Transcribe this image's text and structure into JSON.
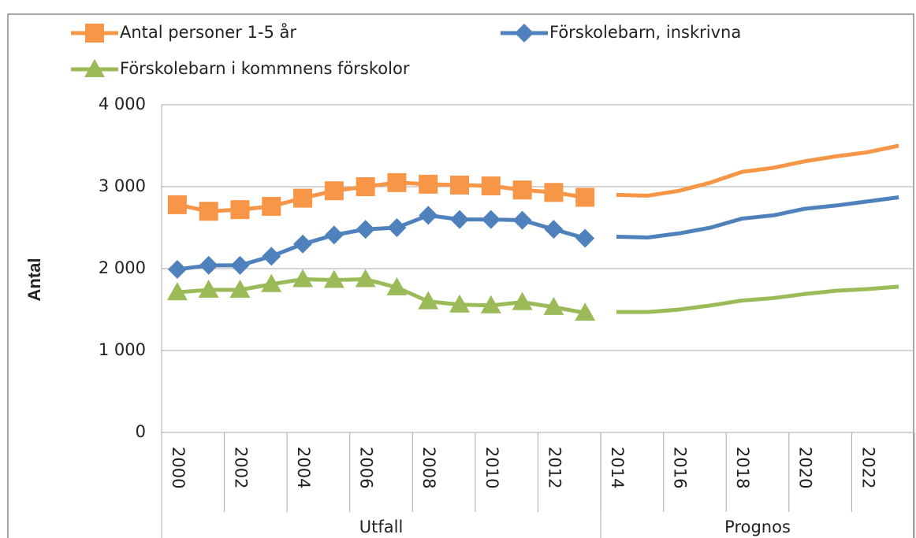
{
  "chart_data": {
    "type": "line",
    "y_label": "Antal",
    "categories": [
      "2000",
      null,
      "2002",
      null,
      "2004",
      null,
      "2006",
      null,
      "2008",
      null,
      "2010",
      null,
      "2012",
      null,
      "2014",
      null,
      "2016",
      null,
      "2018",
      null,
      "2020",
      null,
      "2022",
      null
    ],
    "groups": [
      {
        "label": "Utfall",
        "span": 14,
        "markers": true
      },
      {
        "label": "Prognos",
        "span": 10,
        "markers": false
      }
    ],
    "series": [
      {
        "name": "Antal personer 1-5 år",
        "color": "#f79646",
        "marker": "square",
        "values": [
          2780,
          2700,
          2720,
          2760,
          2860,
          2950,
          3000,
          3050,
          3030,
          3020,
          3010,
          2960,
          2930,
          2870,
          2900,
          2890,
          2950,
          3050,
          3180,
          3230,
          3310,
          3370,
          3420,
          3500
        ]
      },
      {
        "name": "Förskolebarn, inskrivna",
        "color": "#4f81bd",
        "marker": "diamond",
        "values": [
          1990,
          2040,
          2040,
          2150,
          2300,
          2410,
          2480,
          2500,
          2650,
          2600,
          2600,
          2590,
          2480,
          2370,
          2390,
          2380,
          2430,
          2500,
          2610,
          2650,
          2730,
          2770,
          2820,
          2870
        ]
      },
      {
        "name": "Förskolebarn i kommnens förskolor",
        "color": "#9bbb59",
        "marker": "triangle",
        "values": [
          1710,
          1740,
          1740,
          1810,
          1870,
          1860,
          1870,
          1770,
          1600,
          1560,
          1550,
          1590,
          1530,
          1460,
          1470,
          1470,
          1500,
          1550,
          1610,
          1640,
          1690,
          1730,
          1750,
          1780
        ]
      }
    ],
    "ylim": [
      0,
      4000
    ],
    "yticks": [
      0,
      {
        "value": 1000,
        "label": "1 000"
      },
      {
        "value": 2000,
        "label": "2 000"
      },
      {
        "value": 3000,
        "label": "3 000"
      },
      {
        "value": 4000,
        "label": "4 000"
      }
    ],
    "grid": true
  }
}
